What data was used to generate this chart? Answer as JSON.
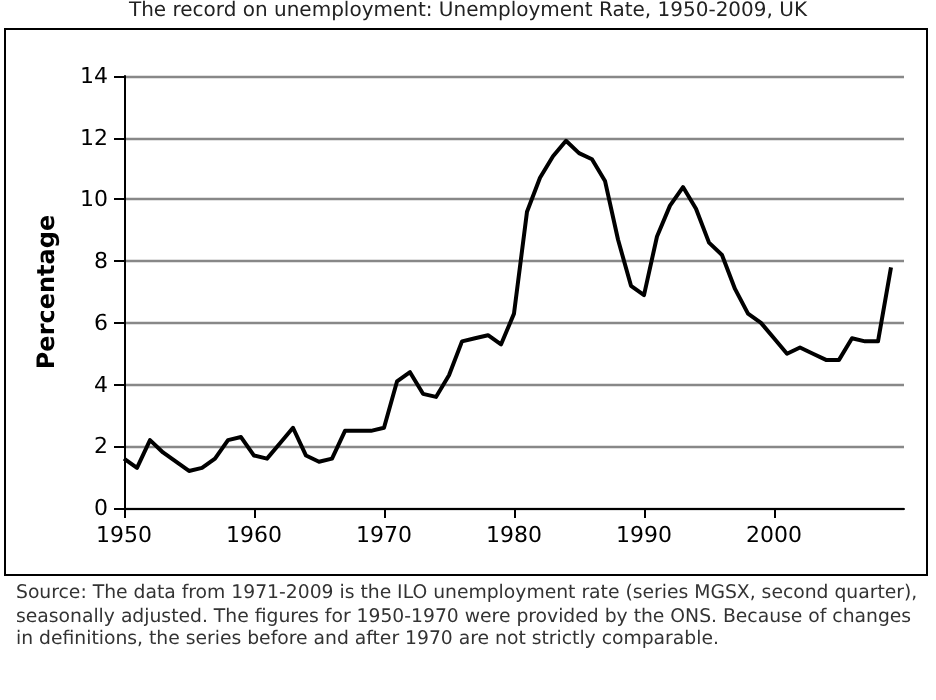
{
  "chart_data": {
    "type": "line",
    "title": "The record on unemployment: Unemployment Rate, 1950-2009, UK",
    "ylabel": "Percentage",
    "x": [
      1950,
      1951,
      1952,
      1953,
      1954,
      1955,
      1956,
      1957,
      1958,
      1959,
      1960,
      1961,
      1962,
      1963,
      1964,
      1965,
      1966,
      1967,
      1968,
      1969,
      1970,
      1971,
      1972,
      1973,
      1974,
      1975,
      1976,
      1977,
      1978,
      1979,
      1980,
      1981,
      1982,
      1983,
      1984,
      1985,
      1986,
      1987,
      1988,
      1989,
      1990,
      1991,
      1992,
      1993,
      1994,
      1995,
      1996,
      1997,
      1998,
      1999,
      2000,
      2001,
      2002,
      2003,
      2004,
      2005,
      2006,
      2007,
      2008,
      2009
    ],
    "series": [
      {
        "color": "#000000",
        "values": [
          1.6,
          1.3,
          2.2,
          1.8,
          1.5,
          1.2,
          1.3,
          1.6,
          2.2,
          2.3,
          1.7,
          1.6,
          2.1,
          2.6,
          1.7,
          1.5,
          1.6,
          2.5,
          2.5,
          2.5,
          2.6,
          4.1,
          4.4,
          3.7,
          3.6,
          4.3,
          5.4,
          5.5,
          5.6,
          5.3,
          6.3,
          9.6,
          10.7,
          11.4,
          11.9,
          11.5,
          11.3,
          10.6,
          8.7,
          7.2,
          6.9,
          8.8,
          9.8,
          10.4,
          9.7,
          8.6,
          8.2,
          7.1,
          6.3,
          6.0,
          5.5,
          5.0,
          5.2,
          5.0,
          4.8,
          4.8,
          5.5,
          5.4,
          5.4,
          7.8
        ]
      }
    ],
    "xlim": [
      1950,
      2010
    ],
    "xticks": [
      1950,
      1960,
      1970,
      1980,
      1990,
      2000
    ],
    "ylim": [
      0,
      14
    ],
    "yticks": [
      0,
      2,
      4,
      6,
      8,
      10,
      12,
      14
    ],
    "grid": "y",
    "marker": "none",
    "line_style": "solid",
    "annotations": [
      "Source: The data from 1971-2009 is the ILO unemployment rate (series MGSX, second quarter), seasonally adjusted. The figures for 1950-1970 were provided by the ONS. Because of changes in definitions, the series before and after 1970 are not strictly comparable."
    ]
  }
}
